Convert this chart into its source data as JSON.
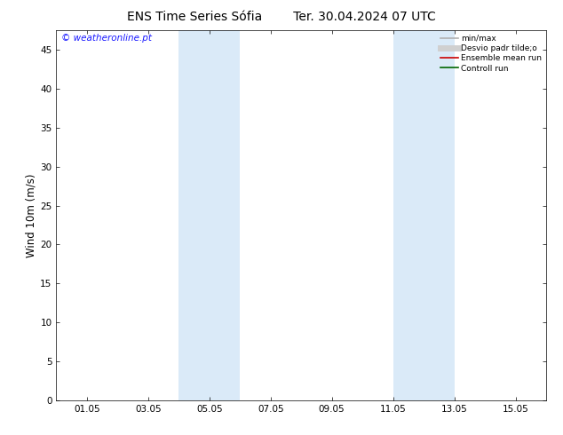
{
  "title": "ENS Time Series Sófia",
  "title_date": "Ter. 30.04.2024 07 UTC",
  "ylabel": "Wind 10m (m/s)",
  "ylim": [
    0,
    47.5
  ],
  "yticks": [
    0,
    5,
    10,
    15,
    20,
    25,
    30,
    35,
    40,
    45
  ],
  "xtick_labels": [
    "01.05",
    "03.05",
    "05.05",
    "07.05",
    "09.05",
    "11.05",
    "13.05",
    "15.05"
  ],
  "xtick_positions": [
    1,
    3,
    5,
    7,
    9,
    11,
    13,
    15
  ],
  "xlim": [
    0,
    16
  ],
  "shade_bands": [
    {
      "xstart": 4.0,
      "xend": 6.0
    },
    {
      "xstart": 11.0,
      "xend": 13.0
    }
  ],
  "shade_color": "#daeaf8",
  "watermark": "© weatheronline.pt",
  "watermark_color": "#1a1aff",
  "legend_entries": [
    {
      "label": "min/max",
      "color": "#b0b0b0",
      "lw": 1.2
    },
    {
      "label": "Desvio padr tilde;o",
      "color": "#d0d0d0",
      "lw": 5
    },
    {
      "label": "Ensemble mean run",
      "color": "#cc0000",
      "lw": 1.2
    },
    {
      "label": "Controll run",
      "color": "#006600",
      "lw": 1.2
    }
  ],
  "bg_color": "#ffffff",
  "plot_bg_color": "#ffffff",
  "spine_color": "#000000",
  "title_fontsize": 10,
  "tick_fontsize": 7.5,
  "ylabel_fontsize": 8.5,
  "watermark_fontsize": 7.5
}
